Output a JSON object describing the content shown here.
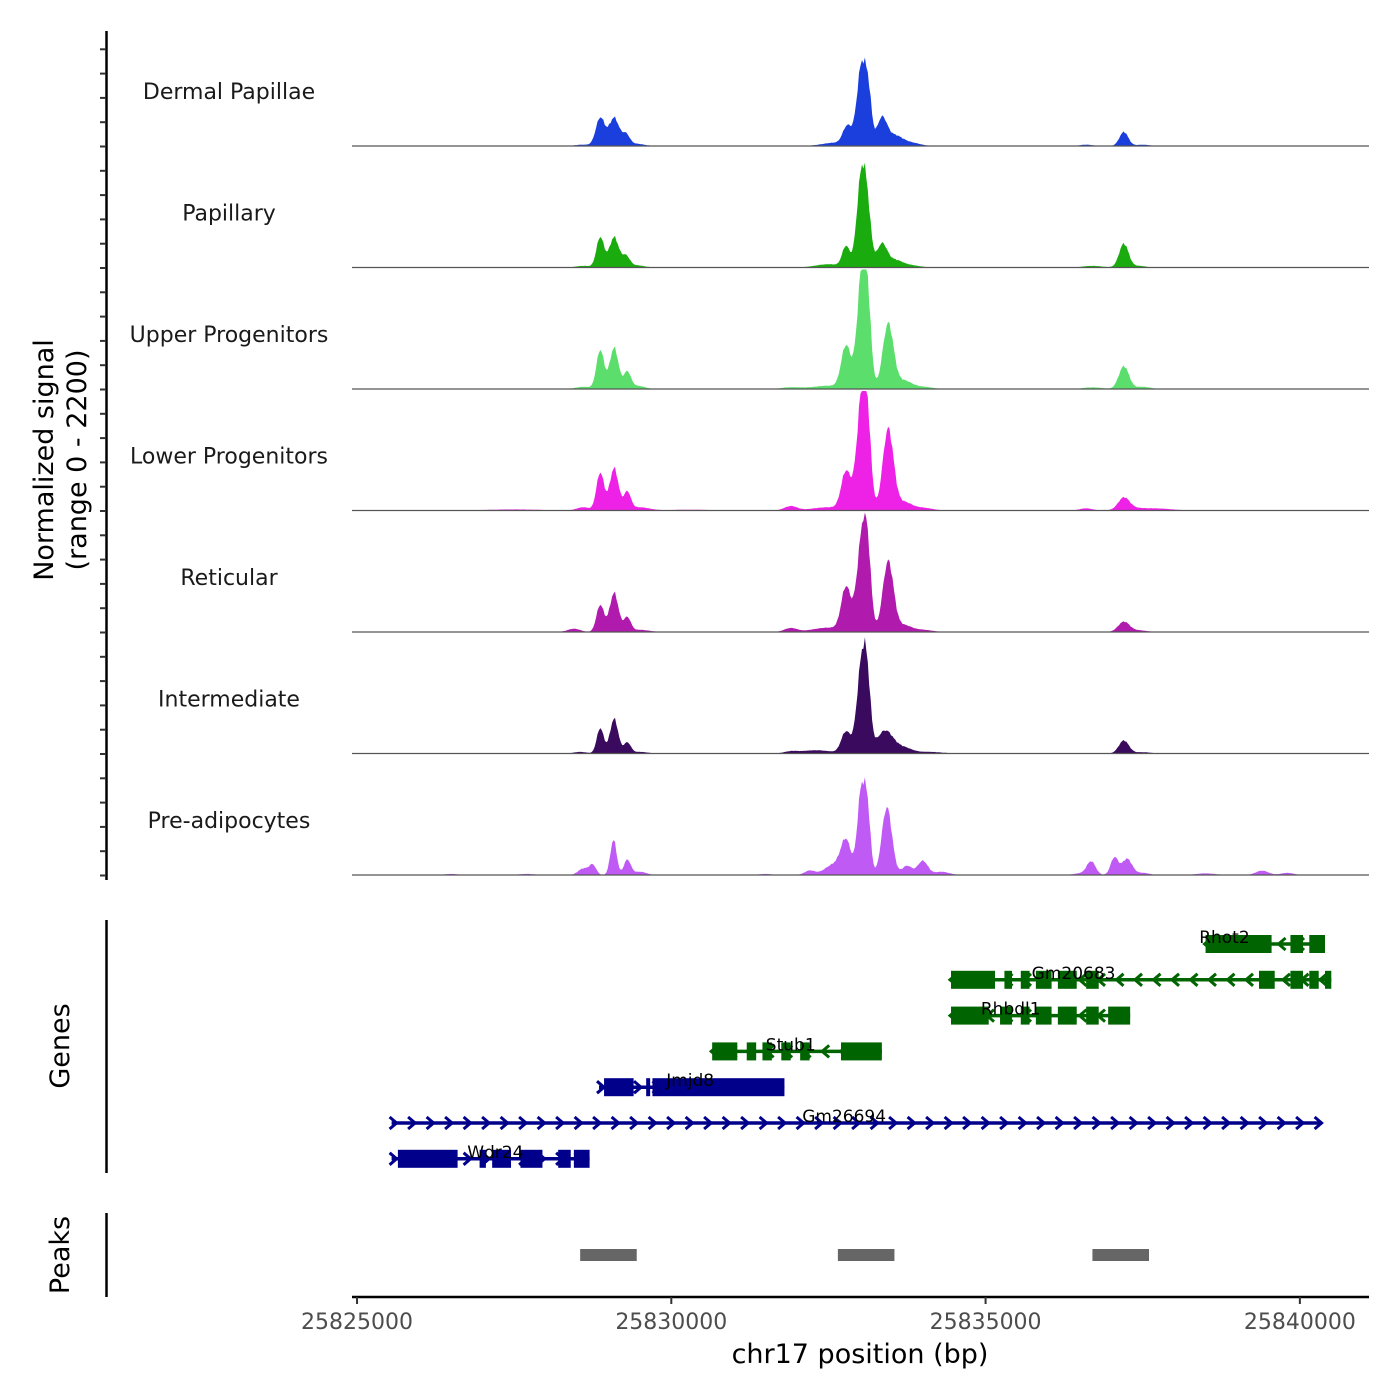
{
  "chart_data": {
    "type": "area",
    "title": "",
    "xlabel": "chr17 position (bp)",
    "ylabel": "Normalized signal\n(range 0 - 2200)",
    "ylabel_lines": [
      "Normalized signal",
      "(range 0 - 2200)"
    ],
    "ylim": [
      0,
      2200
    ],
    "xlim": [
      25824920,
      25841100
    ],
    "x_ticks": [
      25825000,
      25830000,
      25835000,
      25840000
    ],
    "x_tick_labels": [
      "25825000",
      "25830000",
      "25835000",
      "25840000"
    ],
    "grid": false,
    "legend": "none",
    "peak_shapes": {
      "description": "Gaussian components approximating coverage [center_bp, width_bp, height_signal]"
    },
    "series": [
      {
        "name": "Dermal Papillae",
        "color": "#1a3fdc",
        "components": [
          [
            25828600,
            120,
            25
          ],
          [
            25828870,
            70,
            520
          ],
          [
            25829090,
            80,
            520
          ],
          [
            25829280,
            60,
            200
          ],
          [
            25829450,
            120,
            40
          ],
          [
            25832600,
            200,
            60
          ],
          [
            25832800,
            70,
            340
          ],
          [
            25833030,
            75,
            1500
          ],
          [
            25833140,
            50,
            700
          ],
          [
            25833350,
            80,
            500
          ],
          [
            25833550,
            120,
            180
          ],
          [
            25833800,
            150,
            60
          ],
          [
            25836600,
            100,
            25
          ],
          [
            25837200,
            70,
            260
          ],
          [
            25837500,
            100,
            25
          ]
        ]
      },
      {
        "name": "Papillary",
        "color": "#1aab0e",
        "components": [
          [
            25828600,
            120,
            30
          ],
          [
            25828870,
            60,
            560
          ],
          [
            25829090,
            75,
            560
          ],
          [
            25829280,
            60,
            200
          ],
          [
            25829450,
            120,
            40
          ],
          [
            25832500,
            200,
            60
          ],
          [
            25832780,
            60,
            380
          ],
          [
            25833020,
            70,
            1600
          ],
          [
            25833120,
            60,
            900
          ],
          [
            25833350,
            80,
            420
          ],
          [
            25833550,
            120,
            130
          ],
          [
            25833800,
            150,
            40
          ],
          [
            25836700,
            150,
            30
          ],
          [
            25837200,
            75,
            440
          ],
          [
            25837450,
            100,
            30
          ]
        ]
      },
      {
        "name": "Upper Progenitors",
        "color": "#5bde6b",
        "components": [
          [
            25828600,
            120,
            40
          ],
          [
            25828870,
            60,
            720
          ],
          [
            25829090,
            70,
            760
          ],
          [
            25829300,
            55,
            300
          ],
          [
            25829450,
            120,
            60
          ],
          [
            25831900,
            150,
            30
          ],
          [
            25832500,
            250,
            60
          ],
          [
            25832780,
            75,
            780
          ],
          [
            25833030,
            75,
            2000
          ],
          [
            25833120,
            60,
            1200
          ],
          [
            25833450,
            85,
            1200
          ],
          [
            25833700,
            120,
            150
          ],
          [
            25834000,
            150,
            40
          ],
          [
            25836700,
            150,
            30
          ],
          [
            25837200,
            80,
            420
          ],
          [
            25837500,
            120,
            40
          ]
        ]
      },
      {
        "name": "Lower Progenitors",
        "color": "#ee22e6",
        "components": [
          [
            25827500,
            400,
            20
          ],
          [
            25828600,
            100,
            60
          ],
          [
            25828870,
            60,
            700
          ],
          [
            25829090,
            70,
            780
          ],
          [
            25829300,
            55,
            330
          ],
          [
            25829500,
            150,
            60
          ],
          [
            25830300,
            300,
            15
          ],
          [
            25831900,
            100,
            80
          ],
          [
            25832500,
            250,
            60
          ],
          [
            25832780,
            75,
            700
          ],
          [
            25833030,
            80,
            2000
          ],
          [
            25833120,
            60,
            1100
          ],
          [
            25833450,
            85,
            1500
          ],
          [
            25833700,
            120,
            150
          ],
          [
            25834000,
            150,
            50
          ],
          [
            25836600,
            100,
            40
          ],
          [
            25837200,
            90,
            220
          ],
          [
            25837400,
            200,
            40
          ],
          [
            25837800,
            200,
            30
          ]
        ]
      },
      {
        "name": "Reticular",
        "color": "#b01aad",
        "components": [
          [
            25828450,
            100,
            60
          ],
          [
            25828870,
            60,
            500
          ],
          [
            25829090,
            70,
            720
          ],
          [
            25829300,
            55,
            260
          ],
          [
            25829500,
            150,
            40
          ],
          [
            25831900,
            100,
            70
          ],
          [
            25832500,
            250,
            80
          ],
          [
            25832780,
            75,
            800
          ],
          [
            25833030,
            80,
            1600
          ],
          [
            25833120,
            60,
            1100
          ],
          [
            25833450,
            85,
            1300
          ],
          [
            25833700,
            120,
            120
          ],
          [
            25834000,
            150,
            40
          ],
          [
            25837200,
            90,
            190
          ],
          [
            25837450,
            120,
            30
          ]
        ]
      },
      {
        "name": "Intermediate",
        "color": "#3a0a5e",
        "components": [
          [
            25828550,
            100,
            30
          ],
          [
            25828870,
            55,
            470
          ],
          [
            25829090,
            65,
            640
          ],
          [
            25829300,
            55,
            200
          ],
          [
            25829500,
            120,
            30
          ],
          [
            25831900,
            100,
            30
          ],
          [
            25832300,
            250,
            60
          ],
          [
            25832780,
            75,
            400
          ],
          [
            25833030,
            75,
            1650
          ],
          [
            25833120,
            55,
            900
          ],
          [
            25833400,
            130,
            420
          ],
          [
            25833700,
            130,
            100
          ],
          [
            25834100,
            200,
            30
          ],
          [
            25837200,
            80,
            240
          ],
          [
            25837500,
            120,
            25
          ]
        ]
      },
      {
        "name": "Pre-adipocytes",
        "color": "#c05af5",
        "components": [
          [
            25826500,
            100,
            20
          ],
          [
            25827700,
            120,
            20
          ],
          [
            25828600,
            80,
            120
          ],
          [
            25828750,
            55,
            180
          ],
          [
            25829080,
            50,
            650
          ],
          [
            25829300,
            55,
            280
          ],
          [
            25829500,
            100,
            60
          ],
          [
            25831500,
            100,
            20
          ],
          [
            25832200,
            80,
            80
          ],
          [
            25832600,
            150,
            200
          ],
          [
            25832780,
            80,
            580
          ],
          [
            25833020,
            60,
            1500
          ],
          [
            25833120,
            50,
            1100
          ],
          [
            25833430,
            80,
            1250
          ],
          [
            25833750,
            80,
            170
          ],
          [
            25834000,
            80,
            260
          ],
          [
            25834300,
            120,
            60
          ],
          [
            25836500,
            100,
            30
          ],
          [
            25836680,
            70,
            250
          ],
          [
            25837050,
            60,
            320
          ],
          [
            25837250,
            80,
            300
          ],
          [
            25837500,
            100,
            40
          ],
          [
            25838500,
            150,
            30
          ],
          [
            25839400,
            100,
            80
          ],
          [
            25839800,
            100,
            40
          ]
        ]
      }
    ],
    "genes": [
      {
        "name": "Rhot2",
        "strand": "-",
        "color": "#006400",
        "row": 0,
        "start": 25838500,
        "end": 25840400,
        "exons": [
          [
            25838500,
            25839550
          ],
          [
            25839850,
            25840050
          ],
          [
            25840150,
            25840400
          ]
        ],
        "label_x": 25838800
      },
      {
        "name": "Gm20683",
        "strand": "-",
        "color": "#006400",
        "row": 1,
        "start": 25834450,
        "end": 25840500,
        "exons": [
          [
            25834450,
            25835150
          ],
          [
            25835300,
            25835420
          ],
          [
            25835560,
            25835700
          ],
          [
            25835800,
            25836050
          ],
          [
            25836150,
            25836450
          ],
          [
            25836600,
            25836800
          ],
          [
            25839350,
            25839600
          ],
          [
            25839850,
            25840050
          ],
          [
            25840150,
            25840300
          ],
          [
            25840400,
            25840500
          ]
        ],
        "label_x": 25836400
      },
      {
        "name": "Rhbdl1",
        "strand": "-",
        "color": "#006400",
        "row": 2,
        "start": 25834450,
        "end": 25837300,
        "exons": [
          [
            25834450,
            25835050
          ],
          [
            25835230,
            25835420
          ],
          [
            25835560,
            25835700
          ],
          [
            25835800,
            25836050
          ],
          [
            25836150,
            25836450
          ],
          [
            25836600,
            25836800
          ],
          [
            25836950,
            25837300
          ]
        ],
        "label_x": 25835400
      },
      {
        "name": "Stub1",
        "strand": "-",
        "color": "#006400",
        "row": 3,
        "start": 25830650,
        "end": 25833350,
        "exons": [
          [
            25830650,
            25831050
          ],
          [
            25831200,
            25831350
          ],
          [
            25831450,
            25831600
          ],
          [
            25831750,
            25831900
          ],
          [
            25832050,
            25832200
          ],
          [
            25832700,
            25833350
          ]
        ],
        "label_x": 25831900
      },
      {
        "name": "Jmjd8",
        "strand": "+",
        "color": "#00008b",
        "row": 4,
        "start": 25828850,
        "end": 25831800,
        "exons": [
          [
            25828930,
            25829400
          ],
          [
            25829600,
            25829650
          ],
          [
            25829700,
            25831800
          ]
        ],
        "label_x": 25830300
      },
      {
        "name": "Gm26694",
        "strand": "+",
        "color": "#00008b",
        "row": 5,
        "start": 25825550,
        "end": 25840350,
        "exons": [],
        "label_x": 25832750
      },
      {
        "name": "Wdr24",
        "strand": "+",
        "color": "#00008b",
        "row": 6,
        "start": 25825550,
        "end": 25828700,
        "exons": [
          [
            25825650,
            25826600
          ],
          [
            25826950,
            25827050
          ],
          [
            25827150,
            25827450
          ],
          [
            25827600,
            25827950
          ],
          [
            25828200,
            25828400
          ],
          [
            25828450,
            25828700
          ]
        ],
        "label_x": 25827200
      }
    ],
    "peaks": [
      {
        "start": 25828550,
        "end": 25829450
      },
      {
        "start": 25832650,
        "end": 25833550
      },
      {
        "start": 25836700,
        "end": 25837600
      }
    ],
    "peak_color": "#666666",
    "panel_labels": {
      "genes": "Genes",
      "peaks": "Peaks"
    }
  }
}
